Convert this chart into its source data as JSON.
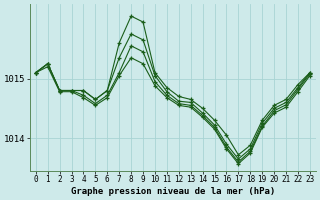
{
  "background_color": "#ceeaea",
  "grid_color": "#a8d4d4",
  "line_color": "#1a5e1a",
  "title": "Graphe pression niveau de la mer (hPa)",
  "yticks": [
    1014,
    1015
  ],
  "xticks": [
    0,
    1,
    2,
    3,
    4,
    5,
    6,
    7,
    8,
    9,
    10,
    11,
    12,
    13,
    14,
    15,
    16,
    17,
    18,
    19,
    20,
    21,
    22,
    23
  ],
  "ylim": [
    1013.45,
    1016.25
  ],
  "xlim": [
    -0.5,
    23.5
  ],
  "series": [
    [
      1015.1,
      1015.25,
      1014.8,
      1014.8,
      1014.8,
      1014.65,
      1014.8,
      1015.6,
      1016.05,
      1015.95,
      1015.1,
      1014.85,
      1014.7,
      1014.65,
      1014.5,
      1014.3,
      1014.05,
      1013.72,
      1013.88,
      1014.3,
      1014.55,
      1014.65,
      1014.9,
      1015.1
    ],
    [
      1015.1,
      1015.25,
      1014.8,
      1014.8,
      1014.8,
      1014.65,
      1014.8,
      1015.35,
      1015.75,
      1015.65,
      1015.05,
      1014.78,
      1014.62,
      1014.6,
      1014.42,
      1014.22,
      1013.9,
      1013.65,
      1013.82,
      1014.25,
      1014.5,
      1014.6,
      1014.85,
      1015.1
    ],
    [
      1015.1,
      1015.25,
      1014.8,
      1014.8,
      1014.72,
      1014.58,
      1014.72,
      1015.1,
      1015.55,
      1015.45,
      1014.95,
      1014.72,
      1014.58,
      1014.55,
      1014.38,
      1014.18,
      1013.85,
      1013.6,
      1013.78,
      1014.2,
      1014.46,
      1014.56,
      1014.82,
      1015.08
    ],
    [
      1015.1,
      1015.2,
      1014.78,
      1014.78,
      1014.68,
      1014.55,
      1014.68,
      1015.05,
      1015.35,
      1015.25,
      1014.88,
      1014.68,
      1014.55,
      1014.52,
      1014.35,
      1014.15,
      1013.82,
      1013.57,
      1013.75,
      1014.18,
      1014.42,
      1014.52,
      1014.78,
      1015.05
    ]
  ]
}
